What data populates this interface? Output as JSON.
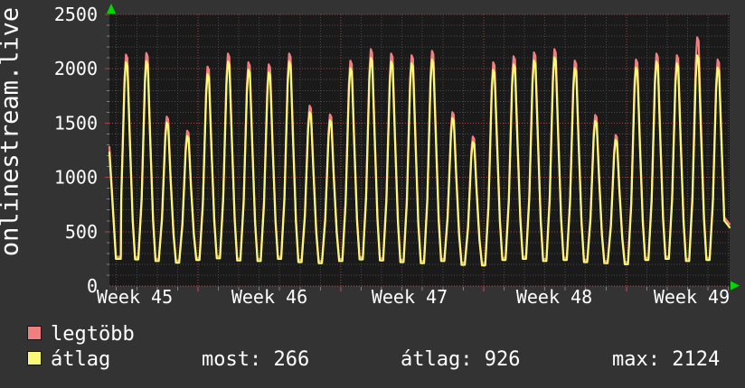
{
  "canvas": {
    "bg": "#333333",
    "plot_bg": "#1a1a1a",
    "text_color": "#ffffff"
  },
  "legend": {
    "items": [
      {
        "label": "legtöbb",
        "color": "#f08080"
      },
      {
        "label": "átlag",
        "color": "#f9f976"
      }
    ],
    "stats": [
      {
        "text": "most: 266"
      },
      {
        "text": "átlag: 926"
      },
      {
        "text": "max: 2124"
      }
    ]
  },
  "chart_data": {
    "type": "line",
    "title": "onlinestream.live",
    "x_axis": {
      "labels": [
        "Week 45",
        "Week 46",
        "Week 47",
        "Week 48",
        "Week 49"
      ],
      "week_boundaries_day": [
        4.342,
        11.342,
        18.342,
        25.342
      ],
      "minor_grid_first_day": 0.342,
      "minor_grid_step_days": 1
    },
    "y_axis": {
      "min": 0,
      "max": 2500,
      "major_step": 500,
      "minor_step": 100,
      "tick_labels": [
        "0",
        "500",
        "1000",
        "1500",
        "2000",
        "2500"
      ]
    },
    "days_shown": 30.4,
    "first_peak_day": 0.84,
    "start_values": {
      "max": 1280,
      "avg": 1230
    },
    "end_values": {
      "max": 570,
      "avg": 540
    },
    "first_trough": {
      "max": 270,
      "avg": 250
    },
    "series": [
      {
        "name": "legtöbb",
        "role": "max",
        "color": "#f08080",
        "daily_peaks": [
          2130,
          2145,
          1560,
          1430,
          2020,
          2140,
          2060,
          2040,
          2140,
          1660,
          1580,
          2075,
          2180,
          2140,
          2125,
          2165,
          1600,
          1375,
          2060,
          2115,
          2150,
          2180,
          2075,
          1575,
          1390,
          2085,
          2140,
          2125,
          2290,
          2085
        ]
      },
      {
        "name": "átlag",
        "role": "average",
        "color": "#f9f976",
        "daily_peaks": [
          2060,
          2070,
          1505,
          1380,
          1950,
          2065,
          1990,
          1965,
          2065,
          1600,
          1525,
          2005,
          2100,
          2065,
          2050,
          2085,
          1545,
          1325,
          1990,
          2040,
          2075,
          2105,
          2005,
          1520,
          1345,
          2010,
          2065,
          2050,
          2124,
          2010
        ]
      }
    ],
    "daily_troughs": [
      265,
      250,
      235,
      260,
      275,
      255,
      250,
      270,
      240,
      230,
      250,
      265,
      255,
      240,
      230,
      250,
      215,
      210,
      260,
      270,
      250,
      260,
      240,
      230,
      220,
      260,
      270,
      250,
      260
    ],
    "avg_trough_offset": -20,
    "stats": {
      "most": 266,
      "atlag": 926,
      "max": 2124
    },
    "grid": {
      "minor_color": "#4a4a4a",
      "major_color": "#a24848",
      "zero_color": "#c05050",
      "tick_color": "#808080"
    },
    "arrow_color": "#00d800"
  }
}
